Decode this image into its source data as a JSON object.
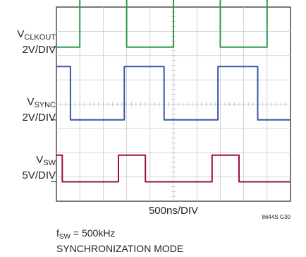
{
  "chart_data": {
    "type": "line",
    "xlabel": "500ns/DIV",
    "grid": true,
    "divisions": {
      "x": 10,
      "y": 8
    },
    "figure_id": "8644S G30",
    "conditions": {
      "fsw_prefix": "f",
      "fsw_sub": "SW",
      "fsw_value": " = 500kHz",
      "mode": "SYNCHRONIZATION MODE"
    },
    "series": [
      {
        "name_main": "V",
        "name_sub": "CLKOUT",
        "scale": "2V/DIV",
        "color": "#2f9a48",
        "ground_div": 6.35,
        "step_height_div": 2.2,
        "x_div": [
          0,
          1.0,
          1.0,
          3.0,
          3.0,
          5.0,
          5.0,
          7.0,
          7.0,
          9.0,
          9.0,
          10
        ],
        "y_level": [
          0,
          0,
          1,
          1,
          0,
          0,
          1,
          1,
          0,
          0,
          1,
          1
        ]
      },
      {
        "name_main": "V",
        "name_sub": "SYNC",
        "scale": "2V/DIV",
        "color": "#3c55a8",
        "ground_div": 3.35,
        "step_height_div": 2.2,
        "x_div": [
          0,
          0.6,
          0.6,
          2.9,
          2.9,
          4.6,
          4.6,
          6.9,
          6.9,
          8.6,
          8.6,
          10
        ],
        "y_level": [
          1,
          1,
          0,
          0,
          1,
          1,
          0,
          0,
          1,
          1,
          0,
          0
        ]
      },
      {
        "name_main": "V",
        "name_sub": "SW",
        "scale": "5V/DIV",
        "color": "#9e1030",
        "ground_div": 0.8,
        "step_height_div": 1.1,
        "x_div": [
          0,
          0.25,
          0.25,
          2.65,
          2.65,
          3.8,
          3.8,
          6.65,
          6.65,
          7.8,
          7.8,
          10
        ],
        "y_level": [
          1,
          1,
          0,
          0,
          1,
          1,
          0,
          0,
          1,
          1,
          0,
          0
        ]
      }
    ]
  }
}
